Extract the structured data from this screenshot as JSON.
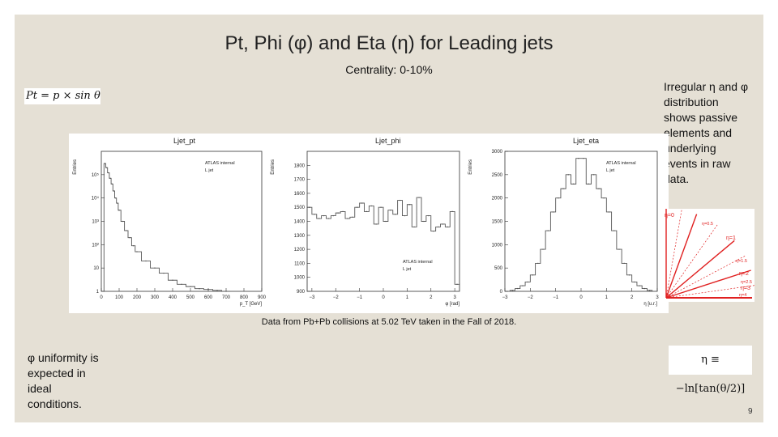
{
  "slide": {
    "title": "Pt, Phi (φ) and Eta (η) for Leading jets",
    "subtitle": "Centrality: 0-10%",
    "pt_formula": "Pt = p × sin θ",
    "eta_formula": "η ≡ −ln[tan(θ/2)]",
    "right_note_lines": [
      "Irregular η and φ",
      "distribution",
      "shows passive",
      "elements and",
      "underlying",
      "events in raw",
      "data."
    ],
    "left_note_lines": [
      "φ uniformity is",
      "expected in",
      "ideal",
      "conditions."
    ],
    "caption": "Data from Pb+Pb collisions at 5.02 TeV taken in the Fall of 2018.",
    "page_number": "9"
  },
  "colors": {
    "background": "#e5e0d5",
    "hist_line": "#555555",
    "cone_red": "#e02020"
  },
  "chart_data": [
    {
      "type": "bar",
      "title": "Ljet_pt",
      "annotation": [
        "ATLAS internal",
        "L jet"
      ],
      "xlabel": "p_T [GeV]",
      "ylabel": "Entries",
      "xlim": [
        0,
        900
      ],
      "ylim": [
        1,
        1000000
      ],
      "log_y": true,
      "xticks": [
        "0",
        "100",
        "200",
        "300",
        "400",
        "500",
        "600",
        "700",
        "800",
        "900"
      ],
      "yticks": [
        "1",
        "10",
        "10²",
        "10³",
        "10⁴",
        "10⁵"
      ],
      "x": [
        20,
        30,
        40,
        50,
        60,
        70,
        80,
        90,
        100,
        120,
        140,
        160,
        180,
        200,
        250,
        300,
        350,
        400,
        450,
        500,
        550,
        600,
        650,
        700
      ],
      "values": [
        300000,
        200000,
        120000,
        70000,
        40000,
        20000,
        10000,
        6000,
        3000,
        1000,
        400,
        200,
        90,
        50,
        20,
        10,
        6,
        3,
        2,
        1.6,
        1.3,
        1.2,
        1.1,
        1
      ]
    },
    {
      "type": "bar",
      "title": "Ljet_phi",
      "annotation": [
        "ATLAS internal",
        "L jet"
      ],
      "xlabel": "φ [rad]",
      "ylabel": "Entries",
      "xlim": [
        -3.2,
        3.2
      ],
      "ylim": [
        900,
        1900
      ],
      "xticks": [
        "−3",
        "−2",
        "−1",
        "0",
        "1",
        "2",
        "3"
      ],
      "yticks": [
        "900",
        "1000",
        "1100",
        "1200",
        "1300",
        "1400",
        "1500",
        "1600",
        "1700",
        "1800"
      ],
      "x": [
        -3.1,
        -2.9,
        -2.7,
        -2.5,
        -2.3,
        -2.1,
        -1.9,
        -1.7,
        -1.5,
        -1.3,
        -1.1,
        -0.9,
        -0.7,
        -0.5,
        -0.3,
        -0.1,
        0.1,
        0.3,
        0.5,
        0.7,
        0.9,
        1.1,
        1.3,
        1.5,
        1.7,
        1.9,
        2.1,
        2.3,
        2.5,
        2.7,
        2.9,
        3.1
      ],
      "values": [
        1500,
        1450,
        1420,
        1440,
        1420,
        1440,
        1460,
        1470,
        1420,
        1430,
        1500,
        1530,
        1470,
        1510,
        1380,
        1500,
        1400,
        1480,
        1450,
        1550,
        1440,
        1520,
        1360,
        1570,
        1400,
        1440,
        1330,
        1360,
        1380,
        1360,
        1470,
        950
      ]
    },
    {
      "type": "bar",
      "title": "Ljet_eta",
      "annotation": [
        "ATLAS internal",
        "L jet"
      ],
      "xlabel": "η [u.r.]",
      "ylabel": "Entries",
      "xlim": [
        -3,
        3
      ],
      "ylim": [
        0,
        3000
      ],
      "xticks": [
        "−3",
        "−2",
        "−1",
        "0",
        "1",
        "2",
        "3"
      ],
      "yticks": [
        "0",
        "500",
        "1000",
        "1500",
        "2000",
        "2500",
        "3000"
      ],
      "x": [
        -2.7,
        -2.5,
        -2.3,
        -2.1,
        -1.9,
        -1.7,
        -1.5,
        -1.3,
        -1.1,
        -0.9,
        -0.7,
        -0.5,
        -0.3,
        -0.1,
        0.1,
        0.3,
        0.5,
        0.7,
        0.9,
        1.1,
        1.3,
        1.5,
        1.7,
        1.9,
        2.1,
        2.3,
        2.5,
        2.7
      ],
      "values": [
        20,
        60,
        120,
        200,
        350,
        600,
        900,
        1300,
        1700,
        2000,
        2200,
        2500,
        2300,
        2850,
        2850,
        2300,
        2500,
        2200,
        2000,
        1700,
        1300,
        900,
        600,
        350,
        200,
        120,
        60,
        20
      ]
    }
  ],
  "cone_labels": [
    "η=0",
    "η=0.5",
    "η=1",
    "η=1.5",
    "η=2",
    "η=2.5",
    "η=3",
    "η=4"
  ]
}
